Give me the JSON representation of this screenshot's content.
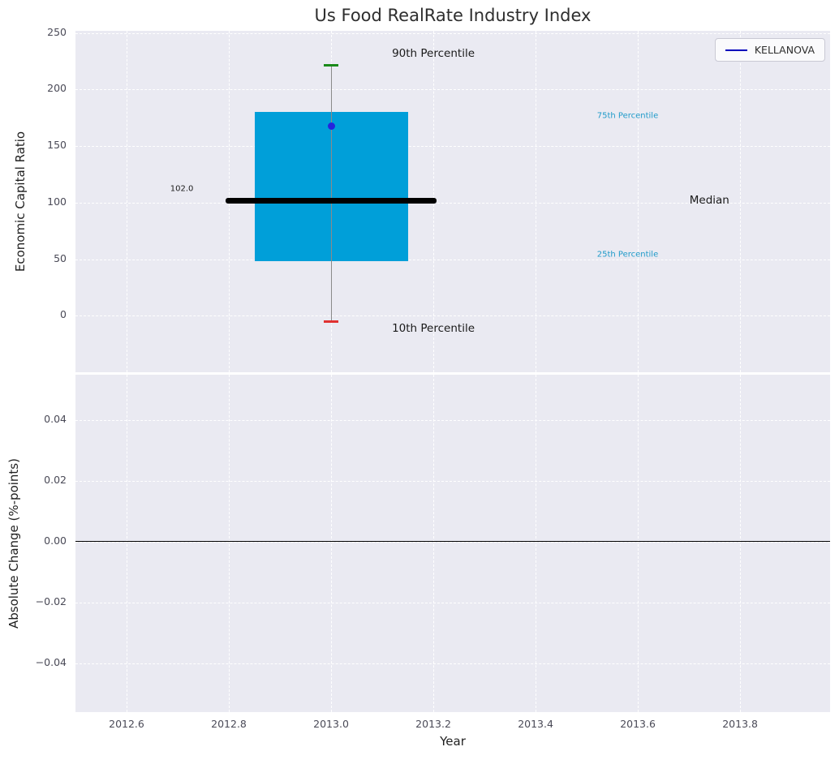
{
  "title": "Us Food RealRate Industry Index",
  "legend": {
    "label": "KELLANOVA",
    "line_color": "#0000bb"
  },
  "colors": {
    "panel_bg": "#eaeaf2",
    "grid": "#ffffff",
    "box_fill": "#009fd9",
    "median_line": "#000000",
    "whisker": "#8a8a8a",
    "p90_cap": "#1a8a1a",
    "p10_cap": "#e03131",
    "point": "#2424dd",
    "tick_text": "#4a4a57",
    "annotation_dark": "#1a1a1a",
    "annotation_blue": "#1f9ac9",
    "zero_line": "#000000"
  },
  "chart_data": [
    {
      "type": "boxplot",
      "title": "Us Food RealRate Industry Index",
      "ylabel": "Economic Capital Ratio",
      "xlabel": "",
      "grid": true,
      "legend_position": "upper right",
      "xlim": [
        2012.5,
        2013.976
      ],
      "ylim": [
        -50,
        252
      ],
      "xticks": [
        {
          "v": 2012.6,
          "label": "2012.6"
        },
        {
          "v": 2012.8,
          "label": "2012.8"
        },
        {
          "v": 2013.0,
          "label": "2013.0"
        },
        {
          "v": 2013.2,
          "label": "2013.2"
        },
        {
          "v": 2013.4,
          "label": "2013.4"
        },
        {
          "v": 2013.6,
          "label": "2013.6"
        },
        {
          "v": 2013.8,
          "label": "2013.8"
        }
      ],
      "yticks": [
        {
          "v": 0,
          "label": "0"
        },
        {
          "v": 50,
          "label": "50"
        },
        {
          "v": 100,
          "label": "100"
        },
        {
          "v": 150,
          "label": "150"
        },
        {
          "v": 200,
          "label": "200"
        },
        {
          "v": 250,
          "label": "250"
        }
      ],
      "box": {
        "x_center": 2013.0,
        "x_left": 2012.85,
        "x_right": 2013.15,
        "p10": -5,
        "p25": 48,
        "median": 102,
        "p75": 180,
        "p90": 222,
        "median_x_left": 2012.794,
        "median_x_right": 2013.206,
        "median_label": "102.0"
      },
      "series": [
        {
          "name": "KELLANOVA",
          "x": [
            2013.0
          ],
          "y": [
            168
          ]
        }
      ],
      "annotations": [
        {
          "text": "90th Percentile",
          "x": 2013.2,
          "y": 232,
          "color": "#1a1a1a",
          "size": 13.5
        },
        {
          "text": "75th Percentile",
          "x": 2013.58,
          "y": 177,
          "color": "#1f9ac9",
          "size": 10
        },
        {
          "text": "Median",
          "x": 2013.74,
          "y": 102,
          "color": "#1a1a1a",
          "size": 13.5
        },
        {
          "text": "25th Percentile",
          "x": 2013.58,
          "y": 54,
          "color": "#1f9ac9",
          "size": 10
        },
        {
          "text": "10th Percentile",
          "x": 2013.2,
          "y": -11,
          "color": "#1a1a1a",
          "size": 13.5
        },
        {
          "text": "102.0",
          "x": 2012.708,
          "y": 112,
          "color": "#1a1a1a",
          "size": 10
        }
      ]
    },
    {
      "type": "line",
      "title": "",
      "ylabel": "Absolute Change (%-points)",
      "xlabel": "Year",
      "grid": true,
      "xlim": [
        2012.5,
        2013.976
      ],
      "ylim": [
        -0.056,
        0.0549
      ],
      "zero_line": 0,
      "xticks": [
        {
          "v": 2012.6,
          "label": "2012.6"
        },
        {
          "v": 2012.8,
          "label": "2012.8"
        },
        {
          "v": 2013.0,
          "label": "2013.0"
        },
        {
          "v": 2013.2,
          "label": "2013.2"
        },
        {
          "v": 2013.4,
          "label": "2013.4"
        },
        {
          "v": 2013.6,
          "label": "2013.6"
        },
        {
          "v": 2013.8,
          "label": "2013.8"
        }
      ],
      "yticks": [
        {
          "v": -0.04,
          "label": "−0.04"
        },
        {
          "v": -0.02,
          "label": "−0.02"
        },
        {
          "v": 0,
          "label": "0.00"
        },
        {
          "v": 0.02,
          "label": "0.02"
        },
        {
          "v": 0.04,
          "label": "0.04"
        }
      ],
      "series": []
    }
  ]
}
